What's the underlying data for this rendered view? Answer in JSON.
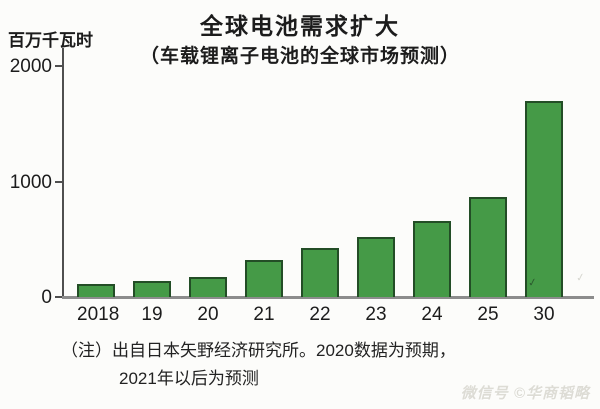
{
  "chart_data": {
    "type": "bar",
    "title": "全球电池需求扩大",
    "subtitle": "（车载锂离子电池的全球市场预测）",
    "unit_label": "百万千瓦时",
    "categories": [
      "2018",
      "19",
      "20",
      "21",
      "22",
      "23",
      "24",
      "25",
      "30"
    ],
    "values": [
      110,
      140,
      170,
      320,
      420,
      520,
      660,
      870,
      1700
    ],
    "xlabel": "",
    "ylabel": "百万千瓦时",
    "ylim": [
      0,
      2000
    ],
    "yticks": [
      0,
      1000,
      2000
    ],
    "grid": false,
    "legend_position": "none",
    "bar_color": "#459a47",
    "bar_border_color": "#234d26"
  },
  "note": {
    "line1": "（注）出自日本矢野经济研究所。2020数据为预期，",
    "line2": "2021年以后为预测"
  },
  "watermark": {
    "text": "微信号 ©华商韬略",
    "artifact_glyph": "✓"
  }
}
